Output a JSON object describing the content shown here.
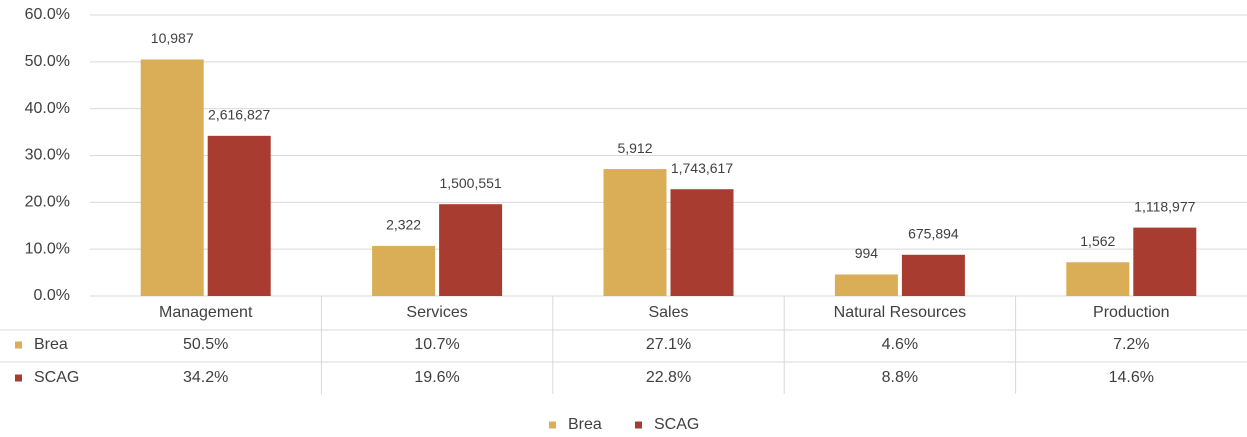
{
  "chart_data": {
    "type": "bar",
    "categories": [
      "Management",
      "Services",
      "Sales",
      "Natural Resources",
      "Production"
    ],
    "series": [
      {
        "name": "Brea",
        "color": "#d9ae57",
        "values": [
          50.5,
          10.7,
          27.1,
          4.6,
          7.2
        ],
        "value_labels": [
          "50.5%",
          "10.7%",
          "27.1%",
          "4.6%",
          "7.2%"
        ],
        "data_labels": [
          "10,987",
          "2,322",
          "5,912",
          "994",
          "1,562"
        ]
      },
      {
        "name": "SCAG",
        "color": "#a93c30",
        "values": [
          34.2,
          19.6,
          22.8,
          8.8,
          14.6
        ],
        "value_labels": [
          "34.2%",
          "19.6%",
          "22.8%",
          "8.8%",
          "14.6%"
        ],
        "data_labels": [
          "2,616,827",
          "1,500,551",
          "1,743,617",
          "675,894",
          "1,118,977"
        ]
      }
    ],
    "ylim": [
      0,
      60
    ],
    "yticks": [
      {
        "value": 0,
        "label": "0.0%"
      },
      {
        "value": 10,
        "label": "10.0%"
      },
      {
        "value": 20,
        "label": "20.0%"
      },
      {
        "value": 30,
        "label": "30.0%"
      },
      {
        "value": 40,
        "label": "40.0%"
      },
      {
        "value": 50,
        "label": "50.0%"
      },
      {
        "value": 60,
        "label": "60.0%"
      }
    ],
    "grid": true,
    "data_table": true,
    "legend": "bottom"
  }
}
